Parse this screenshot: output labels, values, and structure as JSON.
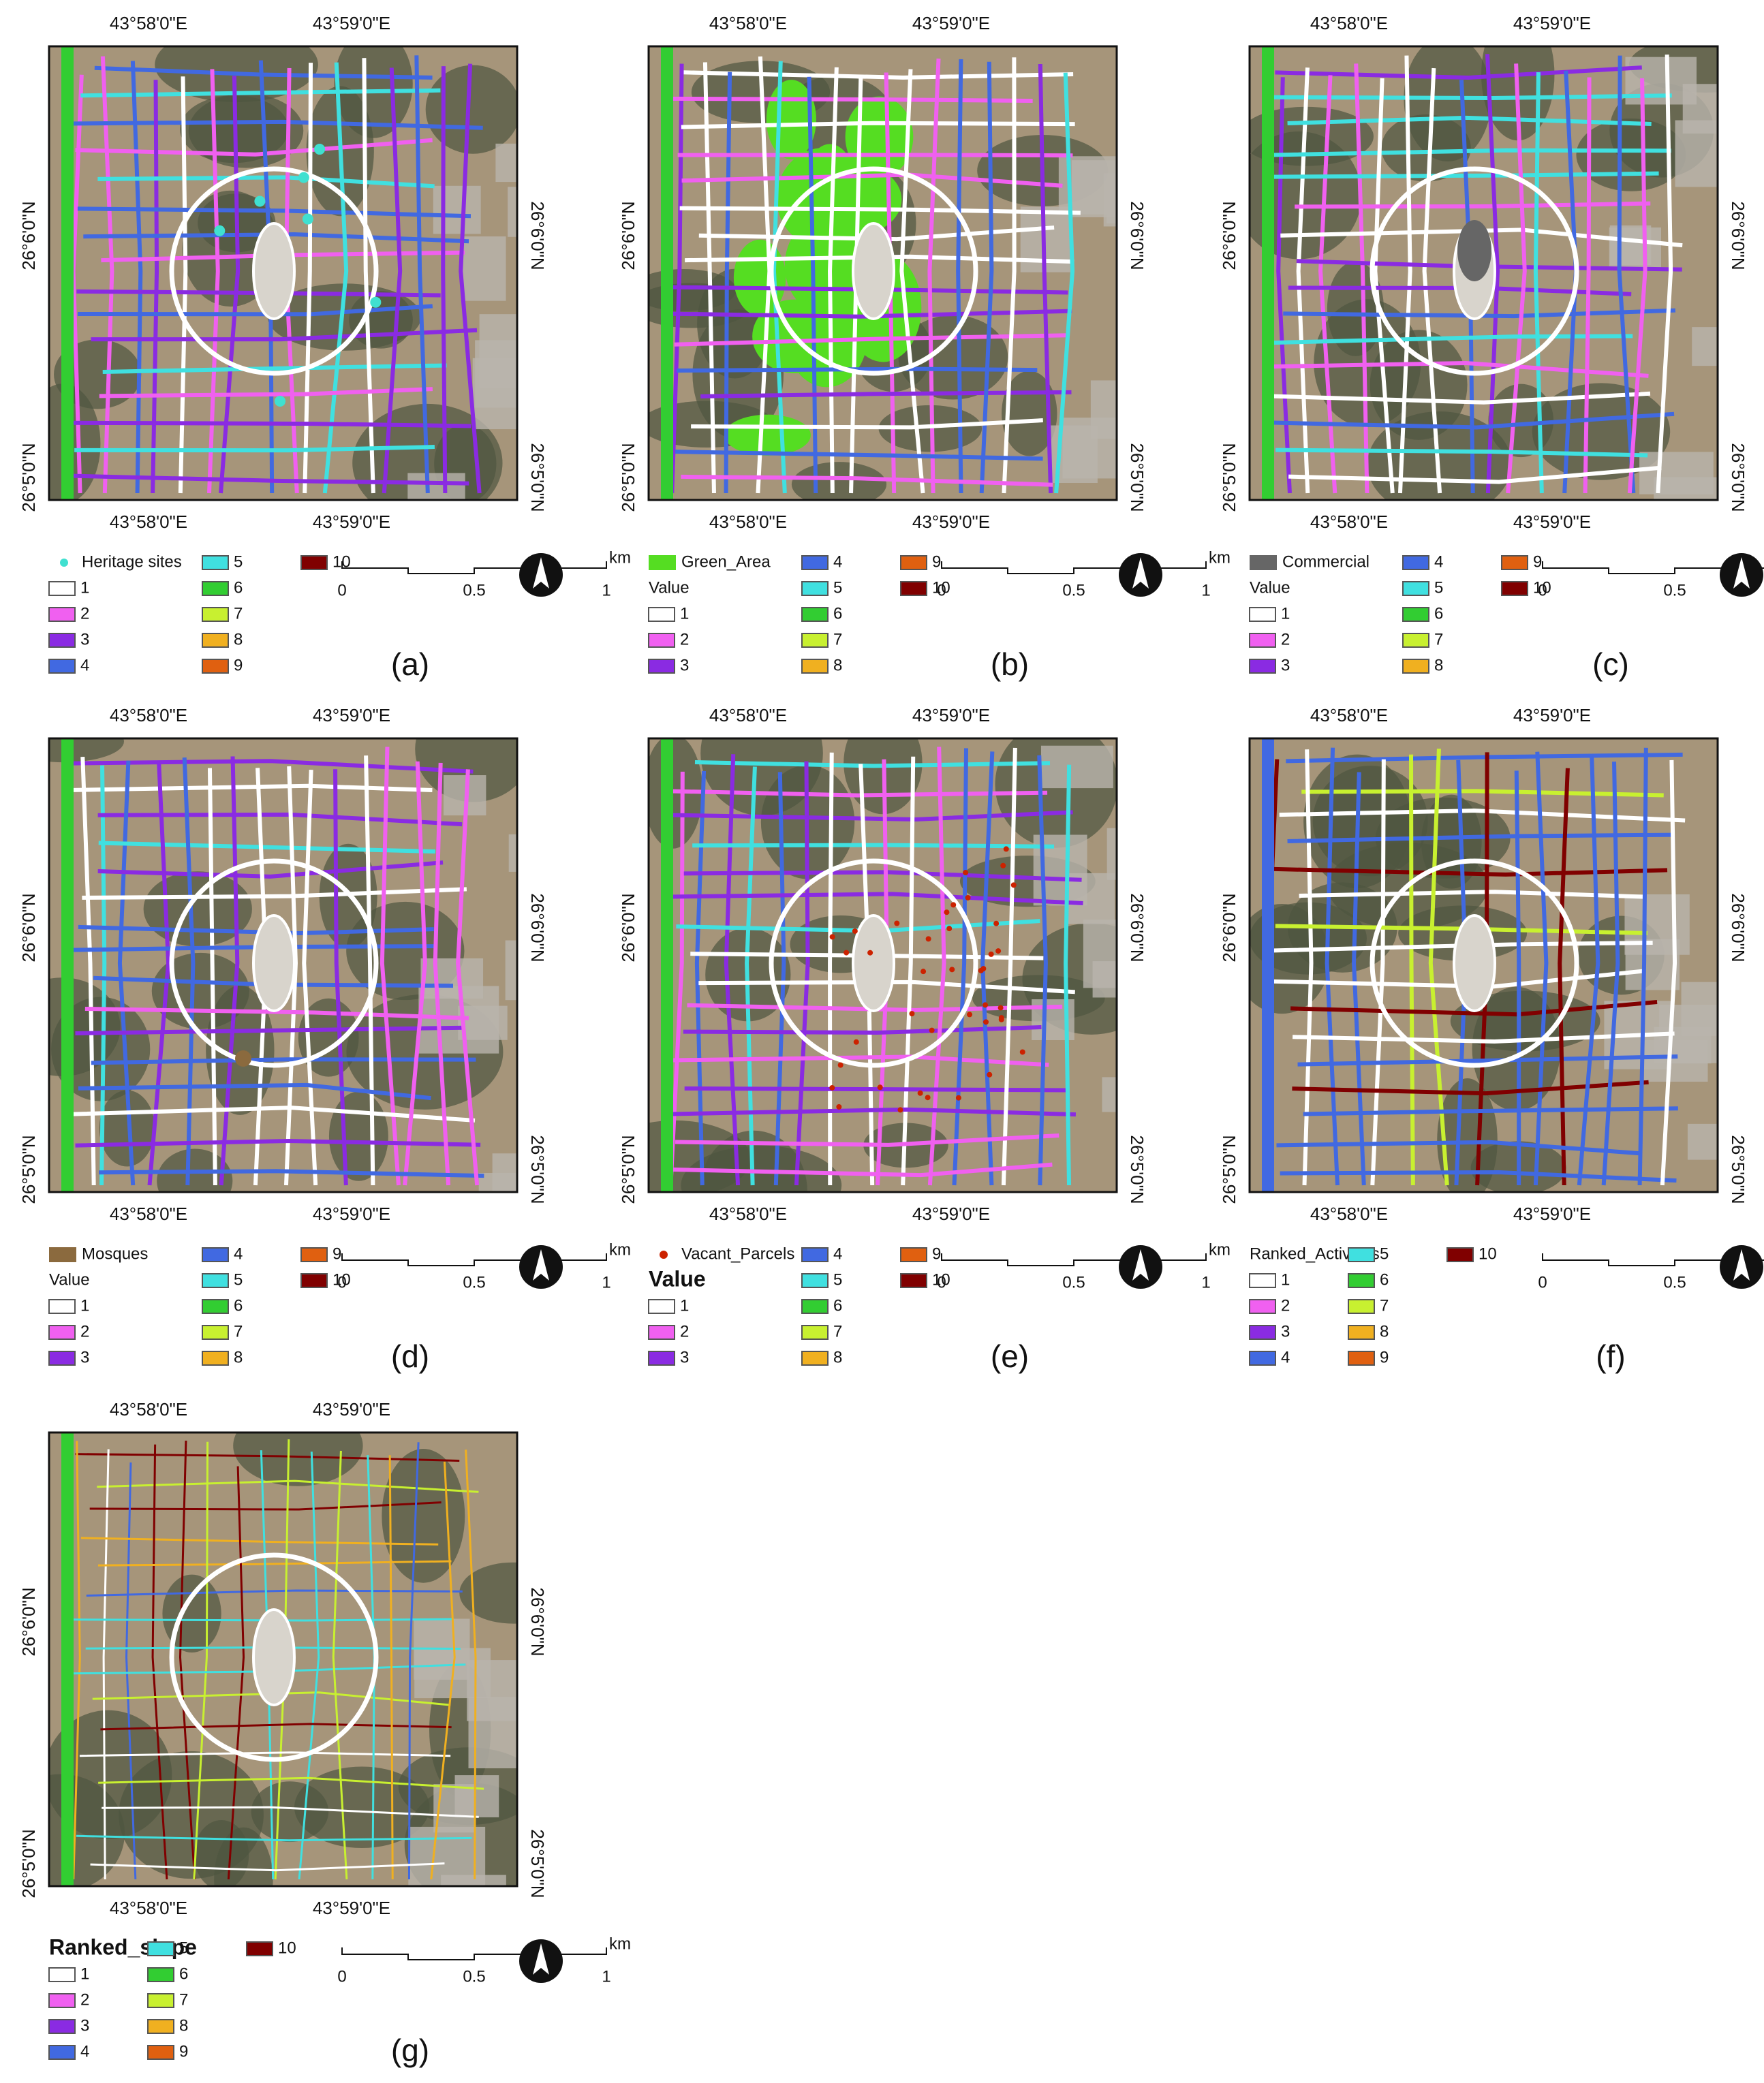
{
  "figure": {
    "coordinates": {
      "lon": [
        "43°58'0\"E",
        "43°59'0\"E"
      ],
      "lat": [
        "26°6'0\"N",
        "26°5'0\"N"
      ]
    },
    "scale_bar": {
      "ticks": [
        "0",
        "0.5",
        "1"
      ],
      "unit": "km"
    },
    "classes": [
      {
        "label": "1",
        "color": "#ffffff"
      },
      {
        "label": "2",
        "color": "#f060f0"
      },
      {
        "label": "3",
        "color": "#8a2be2"
      },
      {
        "label": "4",
        "color": "#4169e1"
      },
      {
        "label": "5",
        "color": "#40e0e0"
      },
      {
        "label": "6",
        "color": "#32cd32"
      },
      {
        "label": "7",
        "color": "#c8f030"
      },
      {
        "label": "8",
        "color": "#f0b020"
      },
      {
        "label": "9",
        "color": "#e06010"
      },
      {
        "label": "10",
        "color": "#800000"
      }
    ],
    "panels": [
      {
        "label": "(a)",
        "layer": "Heritage sites",
        "layer_symbol": "point",
        "layer_color": "#40e0d0"
      },
      {
        "label": "(b)",
        "layer": "Green_Area",
        "layer_symbol": "polygon",
        "layer_color": "#55dd22",
        "heading": "Value"
      },
      {
        "label": "(c)",
        "layer": "Commercial",
        "layer_symbol": "polygon",
        "layer_color": "#666666",
        "heading": "Value"
      },
      {
        "label": "(d)",
        "layer": "Mosques",
        "layer_symbol": "polygon",
        "layer_color": "#8b6a3e",
        "heading": "Value"
      },
      {
        "label": "(e)",
        "layer": "Vacant_Parcels",
        "layer_symbol": "point",
        "layer_color": "#cc2200",
        "heading": "Value",
        "heading_style": "bold"
      },
      {
        "label": "(f)",
        "heading": "Ranked_Activities"
      },
      {
        "label": "(g)",
        "heading": "Ranked_slope",
        "heading_style": "bold"
      }
    ]
  }
}
